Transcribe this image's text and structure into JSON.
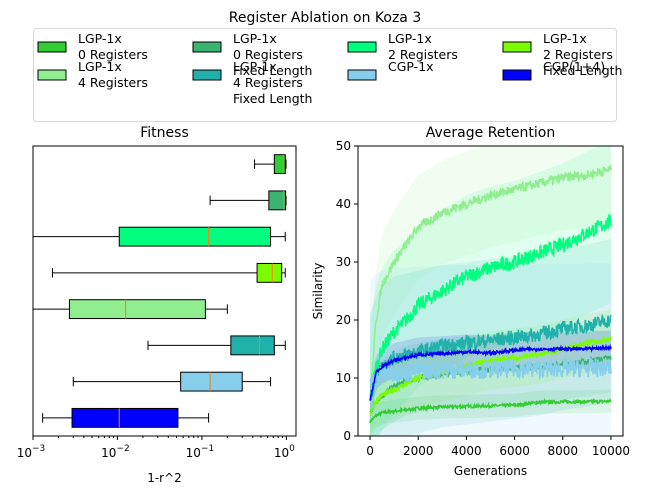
{
  "title": "Register Ablation on Koza 3",
  "legend": [
    {
      "name": "LGP-1x\n0 Registers",
      "color": "#32cd32"
    },
    {
      "name": "LGP-1x\n0 Registers\nFixed Length",
      "color": "#3cb371"
    },
    {
      "name": "LGP-1x\n2 Registers",
      "color": "#00ff7f"
    },
    {
      "name": "LGP-1x\n2 Registers\nFixed Length",
      "color": "#7cfc00"
    },
    {
      "name": "LGP-1x\n4 Registers",
      "color": "#90ee90"
    },
    {
      "name": "LGP-1x\n4 Registers\nFixed Length",
      "color": "#20b2aa"
    },
    {
      "name": "CGP-1x",
      "color": "#87ceeb"
    },
    {
      "name": "CGP(1+4)",
      "color": "#0000ff"
    }
  ],
  "chart_data": [
    {
      "type": "box",
      "title": "Fitness",
      "xlabel": "1-r^2",
      "xscale": "log",
      "xlim": [
        0.001,
        1.3
      ],
      "xticks": [
        {
          "v": 0.001,
          "b": "10",
          "e": "−3"
        },
        {
          "v": 0.01,
          "b": "10",
          "e": "−2"
        },
        {
          "v": 0.1,
          "b": "10",
          "e": "−1"
        },
        {
          "v": 1,
          "b": "10",
          "e": "0"
        }
      ],
      "orientation": "horizontal",
      "boxes": [
        {
          "series": "LGP-1x\n0 Registers",
          "color": "#32cd32",
          "whislo": 0.42,
          "q1": 0.72,
          "med": 0.93,
          "q3": 0.97,
          "whishi": 0.99
        },
        {
          "series": "LGP-1x\n0 Registers\nFixed Length",
          "color": "#3cb371",
          "whislo": 0.125,
          "q1": 0.62,
          "med": 0.93,
          "q3": 0.98,
          "whishi": 0.99
        },
        {
          "series": "LGP-1x\n2 Registers",
          "color": "#00ff7f",
          "whislo": 0.001,
          "q1": 0.0105,
          "med": 0.12,
          "q3": 0.65,
          "whishi": 0.97
        },
        {
          "series": "LGP-1x\n2 Registers\nFixed Length",
          "color": "#7cfc00",
          "whislo": 0.0017,
          "q1": 0.45,
          "med": 0.68,
          "q3": 0.88,
          "whishi": 0.97
        },
        {
          "series": "LGP-1x\n4 Registers",
          "color": "#90ee90",
          "whislo": 0.001,
          "q1": 0.0027,
          "med": 0.0125,
          "q3": 0.11,
          "whishi": 0.2
        },
        {
          "series": "LGP-1x\n4 Registers\nFixed Length",
          "color": "#20b2aa",
          "whislo": 0.023,
          "q1": 0.22,
          "med": 0.48,
          "q3": 0.72,
          "whishi": 0.97
        },
        {
          "series": "CGP-1x",
          "color": "#87ceeb",
          "whislo": 0.003,
          "q1": 0.056,
          "med": 0.125,
          "q3": 0.3,
          "whishi": 0.65
        },
        {
          "series": "CGP(1+4)",
          "color": "#0000ff",
          "whislo": 0.0013,
          "q1": 0.0029,
          "med": 0.0105,
          "q3": 0.052,
          "whishi": 0.12
        }
      ]
    },
    {
      "type": "line",
      "title": "Average Retention",
      "xlabel": "Generations",
      "ylabel": "Similarity",
      "xlim": [
        -500,
        10500
      ],
      "ylim": [
        0,
        50
      ],
      "xticks": [
        0,
        2000,
        4000,
        6000,
        8000,
        10000
      ],
      "yticks": [
        0,
        10,
        20,
        30,
        40,
        50
      ],
      "x": [
        0,
        250,
        500,
        1000,
        1500,
        2000,
        3000,
        4000,
        5000,
        6000,
        7000,
        8000,
        9000,
        10000
      ],
      "series": [
        {
          "name": "LGP-1x\n0 Registers",
          "color": "#32cd32",
          "band": 2,
          "values": [
            2.5,
            3.5,
            4.0,
            4.3,
            4.5,
            4.8,
            5.0,
            5.1,
            5.2,
            5.3,
            5.8,
            5.9,
            5.9,
            6.0
          ]
        },
        {
          "name": "LGP-1x\n0 Registers\nFixed Length",
          "color": "#3cb371",
          "band": 6,
          "values": [
            4.0,
            6.0,
            7.0,
            8.5,
            9.5,
            10.0,
            10.8,
            11.2,
            11.5,
            11.8,
            12.0,
            12.3,
            12.8,
            13.5
          ]
        },
        {
          "name": "LGP-1x\n2 Registers",
          "color": "#00ff7f",
          "band": 14,
          "values": [
            6.0,
            12.0,
            15.0,
            18.0,
            20.0,
            22.5,
            25.0,
            27.5,
            29.0,
            30.0,
            31.5,
            33.0,
            35.0,
            37.0
          ]
        },
        {
          "name": "LGP-1x\n2 Registers\nFixed Length",
          "color": "#7cfc00",
          "band": 5,
          "values": [
            4.0,
            6.0,
            7.0,
            8.0,
            9.0,
            10.0,
            11.0,
            12.0,
            13.0,
            13.5,
            14.0,
            15.0,
            16.0,
            16.8
          ]
        },
        {
          "name": "LGP-1x\n4 Registers",
          "color": "#90ee90",
          "band": 9,
          "values": [
            6.0,
            20.0,
            26.0,
            30.0,
            33.0,
            36.0,
            38.5,
            40.0,
            41.5,
            42.5,
            43.5,
            44.5,
            45.0,
            46.0
          ]
        },
        {
          "name": "LGP-1x\n4 Registers\nFixed Length",
          "color": "#20b2aa",
          "band": 14,
          "values": [
            7.0,
            10.0,
            12.0,
            13.5,
            14.0,
            14.5,
            15.5,
            16.0,
            16.5,
            17.0,
            17.5,
            18.5,
            19.0,
            20.0
          ]
        },
        {
          "name": "CGP-1x",
          "color": "#87ceeb",
          "band": 18,
          "values": [
            9.0,
            10.0,
            10.5,
            11.0,
            11.0,
            11.2,
            11.4,
            11.5,
            11.5,
            11.6,
            11.6,
            11.7,
            11.7,
            11.8
          ]
        },
        {
          "name": "CGP(1+4)",
          "color": "#0000ff",
          "band": 3,
          "values": [
            6.0,
            11.0,
            12.0,
            13.0,
            13.5,
            14.0,
            14.2,
            14.5,
            14.3,
            14.8,
            15.0,
            15.0,
            15.0,
            15.2
          ]
        }
      ]
    }
  ]
}
